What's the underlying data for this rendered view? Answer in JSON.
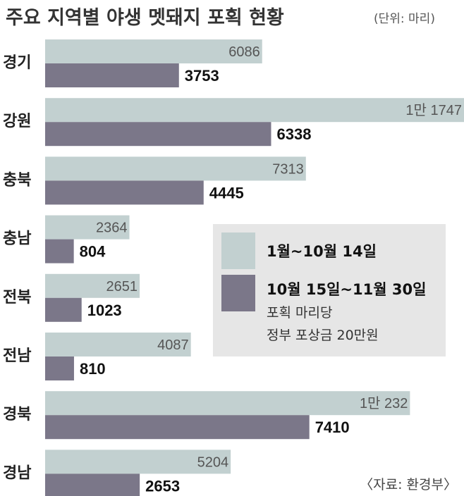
{
  "chart_data": {
    "type": "bar",
    "orientation": "horizontal",
    "title": "주요 지역별 야생 멧돼지 포획 현황",
    "unit_note": "(단위: 마리)",
    "categories": [
      "경기",
      "강원",
      "충북",
      "충남",
      "전북",
      "전남",
      "경북",
      "경남"
    ],
    "series": [
      {
        "name": "1월~10월 14일",
        "color": "#c2d0d0",
        "values": [
          6086,
          11747,
          7313,
          2364,
          2651,
          4087,
          10232,
          5204
        ],
        "labels": [
          "6086",
          "1만 1747",
          "7313",
          "2364",
          "2651",
          "4087",
          "1만 232",
          "5204"
        ]
      },
      {
        "name": "10월 15일~11월 30일",
        "color": "#7b7789",
        "values": [
          3753,
          6338,
          4445,
          804,
          1023,
          810,
          7410,
          2653
        ],
        "labels": [
          "3753",
          "6338",
          "4445",
          "804",
          "1023",
          "810",
          "7410",
          "2653"
        ]
      }
    ],
    "legend": {
      "position": "right-middle",
      "note_lines": [
        "포획 마리당",
        "정부 포상금 20만원"
      ]
    },
    "source": "〈자료: 환경부〉",
    "xlim": [
      0,
      11747
    ]
  }
}
